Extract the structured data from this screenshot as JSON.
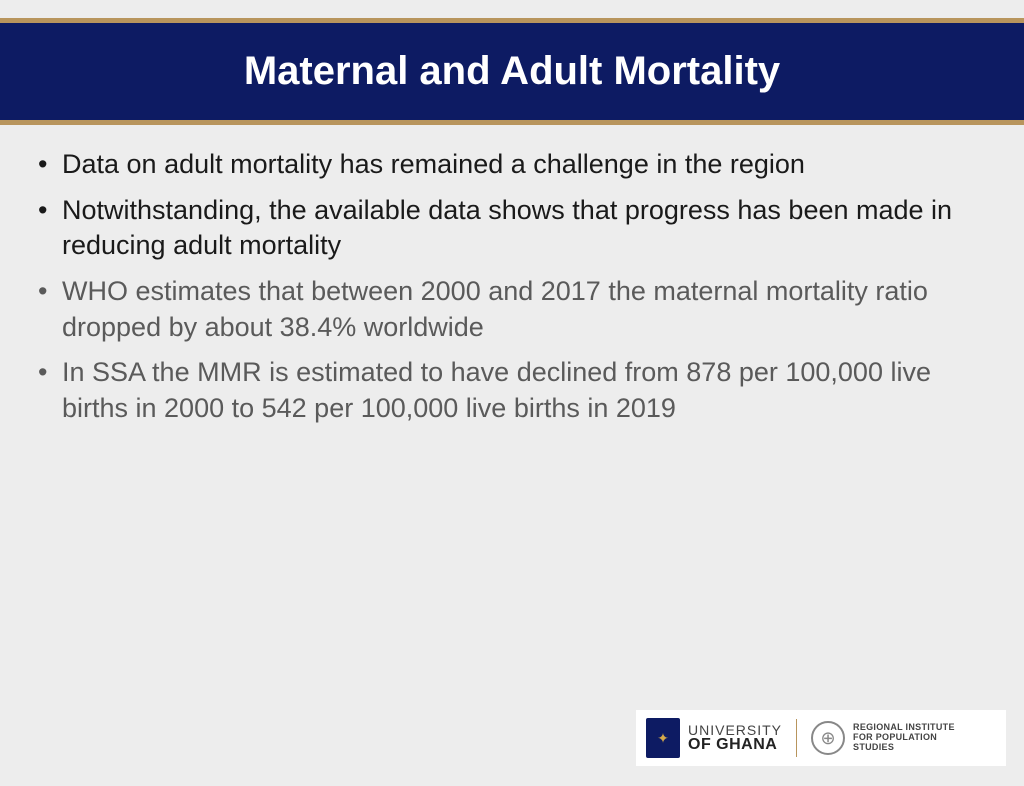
{
  "slide": {
    "title": "Maternal and Adult Mortality",
    "bullets": [
      {
        "text": "Data on adult mortality has remained a challenge in the region",
        "tone": "dark"
      },
      {
        "text": "Notwithstanding, the available data shows that progress has been made in reducing adult mortality",
        "tone": "dark"
      },
      {
        "text": "WHO estimates that between 2000 and 2017 the maternal mortality ratio dropped by about 38.4% worldwide",
        "tone": "grey"
      },
      {
        "text": "In SSA the MMR is estimated to have declined from 878 per 100,000 live births in 2000 to 542 per 100,000 live births in 2019",
        "tone": "grey"
      }
    ]
  },
  "footer": {
    "uni_line1": "UNIVERSITY",
    "uni_line2": "OF GHANA",
    "rips_line1": "REGIONAL INSTITUTE",
    "rips_line2": "FOR POPULATION",
    "rips_line3": "STUDIES"
  },
  "colors": {
    "background": "#ededed",
    "title_bg": "#0d1b63",
    "title_text": "#ffffff",
    "accent_gold": "#b8955d",
    "bullet_dark": "#1a1a1a",
    "bullet_grey": "#5a5a5a"
  },
  "typography": {
    "title_fontsize": 40,
    "bullet_fontsize": 27
  }
}
